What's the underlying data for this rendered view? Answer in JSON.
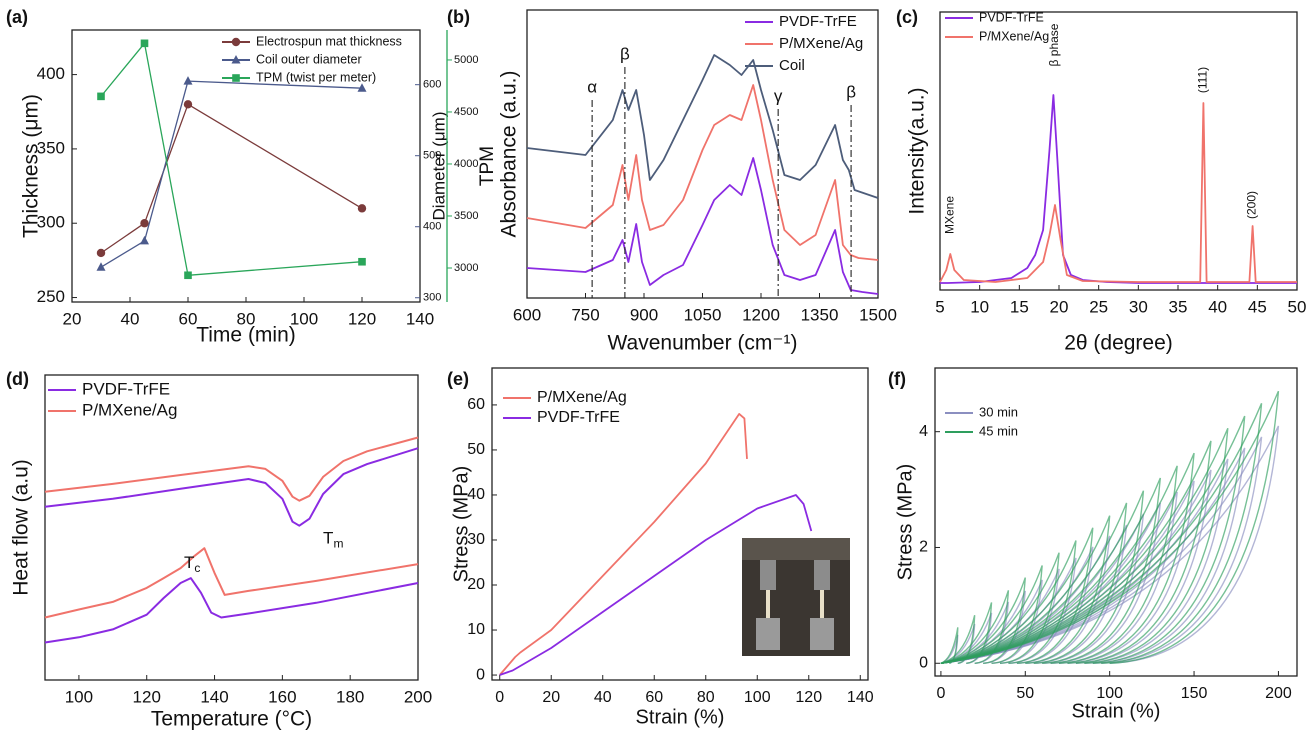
{
  "chart_data": [
    {
      "type": "line",
      "panel_label": "(a)",
      "xlabel": "Time (min)",
      "ylabel": "Thickness (μm)",
      "y2label": "Diameter (μm)",
      "y3label": "TPM",
      "x": [
        30,
        45,
        60,
        120
      ],
      "xlim": [
        20,
        140
      ],
      "xticks": [
        20,
        40,
        60,
        80,
        100,
        120,
        140
      ],
      "ylim": [
        247,
        430
      ],
      "yticks": [
        250,
        300,
        350,
        400
      ],
      "y2lim": [
        294,
        677
      ],
      "y2ticks": [
        300,
        400,
        500,
        600
      ],
      "y3lim": [
        2673,
        5288
      ],
      "y3ticks": [
        3000,
        3500,
        4000,
        4500,
        5000
      ],
      "series": [
        {
          "name": "Electrospun mat thickness",
          "color": "#7b3b3b",
          "marker": "circle",
          "values": [
            280,
            300,
            380,
            310
          ]
        },
        {
          "name": "Coil outer diameter",
          "color": "#4b5a8c",
          "marker": "triangle",
          "axis": "y2",
          "values": [
            343,
            380,
            605,
            595
          ]
        },
        {
          "name": "TPM (twist per meter)",
          "color": "#2aa65a",
          "marker": "square",
          "axis": "y3",
          "values": [
            4650,
            5160,
            2930,
            3060
          ]
        }
      ]
    },
    {
      "type": "line",
      "panel_label": "(b)",
      "xlabel": "Wavenumber (cm⁻¹)",
      "ylabel": "Absorbance (a.u.)",
      "xlim": [
        600,
        1500
      ],
      "xticks": [
        600,
        750,
        900,
        1050,
        1200,
        1350,
        1500
      ],
      "ylim": [
        0.08,
        11.6
      ],
      "series": [
        {
          "name": "PVDF-TrFE",
          "color": "#8a2be2",
          "x": [
            600,
            750,
            820,
            845,
            860,
            880,
            895,
            915,
            950,
            1000,
            1050,
            1080,
            1120,
            1150,
            1180,
            1200,
            1230,
            1260,
            1300,
            1340,
            1390,
            1410,
            1430,
            1460,
            1500
          ],
          "values": [
            1.28,
            1.12,
            1.6,
            2.4,
            1.52,
            3.04,
            1.52,
            0.6,
            1.0,
            1.4,
            3.0,
            4.0,
            4.6,
            4.2,
            5.68,
            4.4,
            2.2,
            1.0,
            0.8,
            1.0,
            2.8,
            1.12,
            0.4,
            0.32,
            0.24
          ]
        },
        {
          "name": "P/MXene/Ag",
          "color": "#f0736b",
          "x": [
            600,
            750,
            820,
            845,
            860,
            880,
            895,
            915,
            950,
            1000,
            1050,
            1080,
            1120,
            1150,
            1180,
            1200,
            1230,
            1260,
            1300,
            1340,
            1390,
            1410,
            1430,
            1450,
            1500
          ],
          "values": [
            3.28,
            2.88,
            3.8,
            5.4,
            4.0,
            5.8,
            4.0,
            2.8,
            3.0,
            4.0,
            6.0,
            7.0,
            7.4,
            7.2,
            8.6,
            7.2,
            4.8,
            2.8,
            2.2,
            2.6,
            4.8,
            2.2,
            1.8,
            1.68,
            1.6
          ]
        },
        {
          "name": "Coil",
          "color": "#4d5d7a",
          "x": [
            600,
            750,
            820,
            845,
            860,
            880,
            900,
            915,
            950,
            1000,
            1050,
            1080,
            1120,
            1150,
            1180,
            1200,
            1230,
            1260,
            1300,
            1340,
            1390,
            1410,
            1425,
            1440,
            1500
          ],
          "values": [
            6.08,
            5.8,
            7.2,
            8.4,
            7.6,
            8.4,
            6.6,
            4.8,
            5.6,
            7.2,
            8.8,
            9.8,
            9.4,
            9.0,
            9.6,
            8.4,
            6.8,
            5.0,
            4.8,
            5.4,
            7.0,
            5.6,
            5.2,
            4.4,
            4.08
          ]
        }
      ],
      "annotations": [
        {
          "text": "α",
          "x": 767,
          "y": 8.48
        },
        {
          "text": "β",
          "x": 851,
          "y": 9.8
        },
        {
          "text": "γ",
          "x": 1244,
          "y": 8.12
        },
        {
          "text": "β",
          "x": 1431,
          "y": 8.28
        }
      ]
    },
    {
      "type": "line",
      "panel_label": "(c)",
      "xlabel": "2θ (degree)",
      "ylabel": "Intensity(a.u.)",
      "xlim": [
        5,
        50
      ],
      "xticks": [
        5,
        10,
        15,
        20,
        25,
        30,
        35,
        40,
        45,
        50
      ],
      "ylim": [
        -0.2,
        10.92
      ],
      "series": [
        {
          "name": "PVDF-TrFE",
          "color": "#8a2be2",
          "x": [
            5,
            6,
            10,
            14,
            16,
            17,
            18,
            18.8,
            19.3,
            19.8,
            20.5,
            21.5,
            23,
            26,
            30,
            40,
            50
          ],
          "values": [
            0.08,
            0.08,
            0.12,
            0.28,
            0.68,
            1.2,
            2.2,
            5.4,
            7.6,
            5.0,
            1.2,
            0.4,
            0.2,
            0.12,
            0.08,
            0.08,
            0.08
          ]
        },
        {
          "name": "P/MXene/Ag",
          "color": "#f0736b",
          "x": [
            5,
            5.8,
            6.3,
            6.8,
            8,
            12,
            16,
            18,
            18.8,
            19.5,
            20.2,
            21,
            23,
            30,
            37.8,
            38.2,
            38.6,
            40,
            44,
            44.4,
            44.8,
            46,
            50
          ],
          "values": [
            0.12,
            0.6,
            1.24,
            0.6,
            0.2,
            0.12,
            0.28,
            0.92,
            2.0,
            3.2,
            1.8,
            0.4,
            0.16,
            0.12,
            0.12,
            7.28,
            0.12,
            0.12,
            0.12,
            2.36,
            0.12,
            0.12,
            0.12
          ]
        }
      ],
      "annotations": [
        {
          "text": "MXene",
          "x": 6.3,
          "y": 2.8
        },
        {
          "text": "β phase",
          "x": 19.5,
          "y": 9.6
        },
        {
          "text": "(111)",
          "x": 38.2,
          "y": 8.2
        },
        {
          "text": "(200)",
          "x": 44.4,
          "y": 3.2
        }
      ]
    },
    {
      "type": "line",
      "panel_label": "(d)",
      "xlabel": "Temperature (°C)",
      "ylabel": "Heat flow (a.u)",
      "xlim": [
        90,
        200
      ],
      "xticks": [
        100,
        120,
        140,
        160,
        180,
        200
      ],
      "ylim": [
        0,
        10
      ],
      "series": [
        {
          "name": "PVDF-TrFE",
          "color": "#8a2be2",
          "curves": [
            {
              "x": [
                90,
                110,
                130,
                150,
                155,
                160,
                163,
                165,
                168,
                172,
                178,
                185,
                200
              ],
              "values": [
                5.68,
                5.94,
                6.27,
                6.59,
                6.46,
                5.94,
                5.19,
                5.06,
                5.29,
                6.1,
                6.75,
                7.08,
                7.6
              ]
            },
            {
              "x": [
                90,
                100,
                110,
                120,
                125,
                130,
                133,
                136,
                139,
                142,
                150,
                170,
                200
              ],
              "values": [
                1.23,
                1.4,
                1.66,
                2.14,
                2.69,
                3.18,
                3.34,
                2.86,
                2.21,
                2.05,
                2.18,
                2.53,
                3.18
              ]
            }
          ]
        },
        {
          "name": "P/MXene/Ag",
          "color": "#f0736b",
          "curves": [
            {
              "x": [
                90,
                110,
                130,
                150,
                155,
                160,
                163,
                165,
                168,
                172,
                178,
                185,
                200
              ],
              "values": [
                6.17,
                6.43,
                6.72,
                7.01,
                6.92,
                6.53,
                6.01,
                5.88,
                6.04,
                6.66,
                7.18,
                7.5,
                7.95
              ]
            },
            {
              "x": [
                90,
                100,
                110,
                120,
                125,
                130,
                134,
                137,
                140,
                143,
                150,
                170,
                200
              ],
              "values": [
                2.05,
                2.31,
                2.56,
                3.02,
                3.34,
                3.67,
                4.06,
                4.32,
                3.51,
                2.79,
                2.92,
                3.25,
                3.8
              ]
            }
          ]
        }
      ],
      "annotations": [
        {
          "text": "T",
          "sub": "m",
          "x": 172,
          "y": 4.6
        },
        {
          "text": "T",
          "sub": "c",
          "x": 131,
          "y": 3.8
        }
      ]
    },
    {
      "type": "line",
      "panel_label": "(e)",
      "xlabel": "Strain (%)",
      "ylabel": "Stress (MPa)",
      "xlim": [
        -3,
        143
      ],
      "xticks": [
        0,
        20,
        40,
        60,
        80,
        100,
        120,
        140
      ],
      "ylim": [
        -1.1,
        68.2
      ],
      "yticks": [
        0,
        10,
        20,
        30,
        40,
        50,
        60
      ],
      "series": [
        {
          "name": "P/MXene/Ag",
          "color": "#f0736b",
          "x": [
            0,
            3,
            6,
            8,
            20,
            40,
            60,
            80,
            93,
            95,
            96
          ],
          "values": [
            0,
            2,
            4,
            5,
            10,
            22,
            34,
            47,
            58,
            57,
            48
          ]
        },
        {
          "name": "PVDF-TrFE",
          "color": "#8a2be2",
          "x": [
            0,
            5,
            20,
            40,
            60,
            80,
            100,
            115,
            118,
            121
          ],
          "values": [
            0,
            1,
            6,
            14,
            22,
            30,
            37,
            40,
            38,
            32
          ]
        }
      ]
    },
    {
      "type": "loops",
      "panel_label": "(f)",
      "xlabel": "Strain (%)",
      "ylabel": "Stress (MPa)",
      "xlim": [
        -3.5,
        211
      ],
      "xticks": [
        0,
        50,
        100,
        150,
        200
      ],
      "ylim": [
        -0.22,
        5.1
      ],
      "yticks": [
        0,
        2,
        4
      ],
      "series": [
        {
          "name": "30 min",
          "color": "#8b8fc0",
          "x": [
            10,
            20,
            30,
            40,
            50,
            60,
            70,
            80,
            90,
            100,
            110,
            120,
            130,
            140,
            150,
            160,
            170,
            180,
            190,
            200
          ],
          "values": [
            0.49,
            0.68,
            0.87,
            1.06,
            1.25,
            1.44,
            1.63,
            1.82,
            2.01,
            2.2,
            2.39,
            2.58,
            2.77,
            2.96,
            3.15,
            3.34,
            3.53,
            3.72,
            3.91,
            4.1
          ]
        },
        {
          "name": "45 min",
          "color": "#2e9e5e",
          "x": [
            10,
            20,
            30,
            40,
            50,
            60,
            70,
            80,
            90,
            100,
            110,
            120,
            130,
            140,
            150,
            160,
            170,
            180,
            190,
            200
          ],
          "values": [
            0.62,
            0.83,
            1.05,
            1.26,
            1.48,
            1.69,
            1.91,
            2.12,
            2.34,
            2.55,
            2.77,
            2.98,
            3.2,
            3.41,
            3.63,
            3.84,
            4.06,
            4.27,
            4.49,
            4.7
          ]
        }
      ]
    }
  ]
}
